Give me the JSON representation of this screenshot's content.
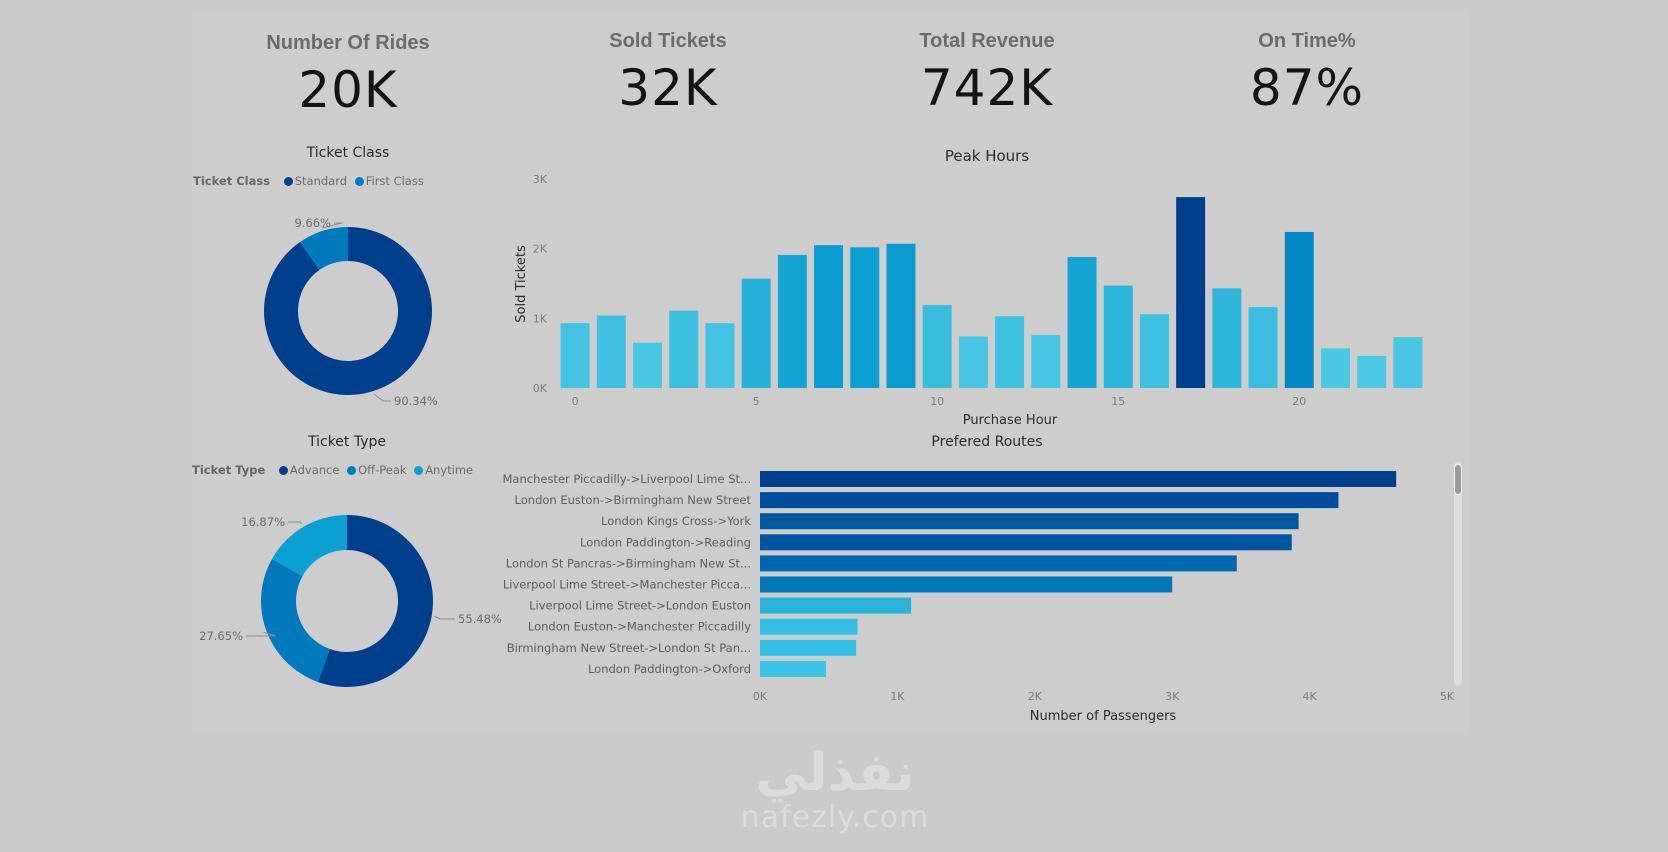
{
  "kpis": [
    {
      "title": "Number Of Rides",
      "value": "20K"
    },
    {
      "title": "Sold Tickets",
      "value": "32K"
    },
    {
      "title": "Total Revenue",
      "value": "742K"
    },
    {
      "title": "On Time%",
      "value": "87%"
    }
  ],
  "colors": {
    "navy": "#003f8c",
    "blue": "#0079bd",
    "sky": "#0c9fd1",
    "light": "#4cc9e4",
    "background": "#cbcbcb"
  },
  "watermark": {
    "arabic": "نفذلي",
    "latin": "nafezly.com"
  },
  "chart_data": [
    {
      "type": "pie",
      "variant": "donut",
      "title": "Ticket Class",
      "legend_title": "Ticket Class",
      "legend_position": "top-left",
      "categories": [
        "Standard",
        "First Class"
      ],
      "values": [
        90.34,
        9.66
      ],
      "labels": [
        "90.34%",
        "9.66%"
      ],
      "colors": [
        "#003f8c",
        "#0079bd"
      ]
    },
    {
      "type": "pie",
      "variant": "donut",
      "title": "Ticket Type",
      "legend_title": "Ticket Type",
      "legend_position": "top-left",
      "categories": [
        "Advance",
        "Off-Peak",
        "Anytime"
      ],
      "values": [
        55.48,
        27.65,
        16.87
      ],
      "labels": [
        "55.48%",
        "27.65%",
        "16.87%"
      ],
      "colors": [
        "#003f8c",
        "#0079bd",
        "#0c9fd1"
      ]
    },
    {
      "type": "bar",
      "title": "Peak Hours",
      "xlabel": "Purchase Hour",
      "ylabel": "Sold Tickets",
      "x": [
        0,
        1,
        2,
        3,
        4,
        5,
        6,
        7,
        8,
        9,
        10,
        11,
        12,
        13,
        14,
        15,
        16,
        17,
        18,
        19,
        20,
        21,
        22,
        23
      ],
      "values": [
        930,
        1040,
        650,
        1110,
        930,
        1570,
        1910,
        2050,
        2020,
        2070,
        1190,
        740,
        1030,
        760,
        1880,
        1470,
        1060,
        2740,
        1430,
        1160,
        2240,
        570,
        460,
        730
      ],
      "xticks": [
        "0",
        "5",
        "10",
        "15",
        "20"
      ],
      "xtick_values": [
        0,
        5,
        10,
        15,
        20
      ],
      "yticks": [
        "0K",
        "1K",
        "2K",
        "3K"
      ],
      "ytick_values": [
        0,
        1000,
        2000,
        3000
      ],
      "ylim": [
        0,
        3000
      ],
      "grid": false
    },
    {
      "type": "bar",
      "orientation": "horizontal",
      "title": "Prefered Routes",
      "xlabel": "Number of Passengers",
      "ylabel": "",
      "categories": [
        "Manchester Piccadilly->Liverpool Lime St...",
        "London Euston->Birmingham New Street",
        "London Kings Cross->York",
        "London Paddington->Reading",
        "London St Pancras->Birmingham New St...",
        "Liverpool Lime Street->Manchester Picca...",
        "Liverpool Lime Street->London Euston",
        "London Euston->Manchester Piccadilly",
        "Birmingham New Street->London St Pan...",
        "London Paddington->Oxford"
      ],
      "values": [
        4630,
        4210,
        3920,
        3870,
        3470,
        3000,
        1100,
        710,
        700,
        480
      ],
      "xticks": [
        "0K",
        "1K",
        "2K",
        "3K",
        "4K",
        "5K"
      ],
      "xtick_values": [
        0,
        1000,
        2000,
        3000,
        4000,
        5000
      ],
      "xlim": [
        0,
        5000
      ],
      "scroll_position": 0.0,
      "grid": false
    }
  ]
}
